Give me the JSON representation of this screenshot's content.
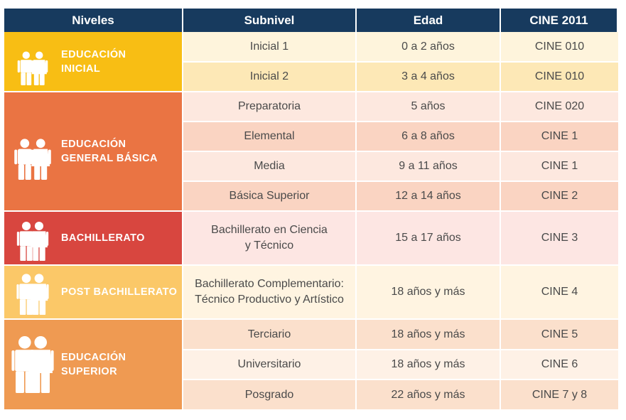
{
  "header": {
    "niveles": "Niveles",
    "subnivel": "Subnivel",
    "edad": "Edad",
    "cine": "CINE 2011"
  },
  "levels": [
    {
      "label": "EDUCACIÓN\nINICIAL",
      "color": "#f8be14",
      "icon": "children-icon",
      "rows": [
        {
          "subnivel": "Inicial 1",
          "edad": "0 a 2 años",
          "cine": "CINE 010",
          "shade": "#fef4dc"
        },
        {
          "subnivel": "Inicial 2",
          "edad": "3 a 4 años",
          "cine": "CINE 010",
          "shade": "#fde8b6"
        }
      ]
    },
    {
      "label": "EDUCACIÓN\nGENERAL BÁSICA",
      "color": "#ea7443",
      "icon": "children-icon",
      "rows": [
        {
          "subnivel": "Preparatoria",
          "edad": "5 años",
          "cine": "CINE 020",
          "shade": "#fde8df"
        },
        {
          "subnivel": "Elemental",
          "edad": "6 a 8 años",
          "cine": "CINE 1",
          "shade": "#fad4c2"
        },
        {
          "subnivel": "Media",
          "edad": "9 a 11 años",
          "cine": "CINE 1",
          "shade": "#fde8df"
        },
        {
          "subnivel": "Básica Superior",
          "edad": "12 a 14 años",
          "cine": "CINE 2",
          "shade": "#fad4c2"
        }
      ]
    },
    {
      "label": "BACHILLERATO",
      "color": "#d8463f",
      "icon": "teens-icon",
      "rows": [
        {
          "subnivel": "Bachillerato en Ciencia\ny Técnico",
          "edad": "15 a 17 años",
          "cine": "CINE 3",
          "shade": "#fde6e3"
        }
      ]
    },
    {
      "label": "POST BACHILLERATO",
      "color": "#fbc868",
      "icon": "young-adults-icon",
      "rows": [
        {
          "subnivel": "Bachillerato Complementario:\nTécnico Productivo y Artístico",
          "edad": "18 años y más",
          "cine": "CINE 4",
          "shade": "#fff4e1"
        }
      ]
    },
    {
      "label": "EDUCACIÓN\nSUPERIOR",
      "color": "#ef9a52",
      "icon": "adults-icon",
      "rows": [
        {
          "subnivel": "Terciario",
          "edad": "18 años y más",
          "cine": "CINE 5",
          "shade": "#fbe0cc"
        },
        {
          "subnivel": "Universitario",
          "edad": "18 años y más",
          "cine": "CINE 6",
          "shade": "#fef1e6"
        },
        {
          "subnivel": "Posgrado",
          "edad": "22 años y más",
          "cine": "CINE 7 y 8",
          "shade": "#fbe0cc"
        }
      ]
    }
  ]
}
